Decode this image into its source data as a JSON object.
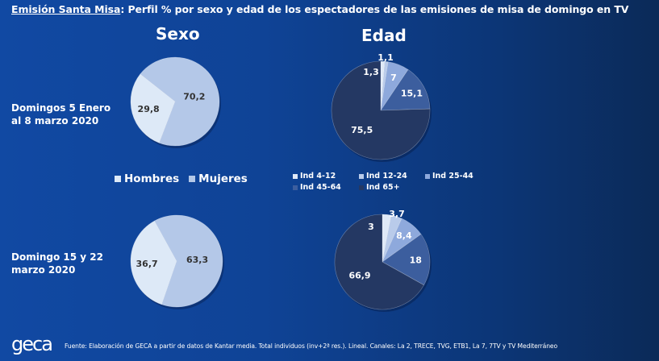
{
  "title": {
    "highlight": "Emisión Santa Misa",
    "rest": ": Perfil % por sexo y edad de los espectadores de las emisiones de misa de domingo en TV"
  },
  "columns": {
    "sex": "Sexo",
    "age": "Edad"
  },
  "periods": [
    {
      "line1": "Domingos 5 Enero",
      "line2": "al 8 marzo 2020"
    },
    {
      "line1": "Domingo 15 y 22",
      "line2": "marzo 2020"
    }
  ],
  "legend_sex": [
    {
      "label": "Hombres",
      "color": "#dde9f7"
    },
    {
      "label": "Mujeres",
      "color": "#b4c8e8"
    }
  ],
  "legend_age": [
    {
      "label": "Ind 4-12",
      "color": "#dfe9f7"
    },
    {
      "label": "Ind 12-24",
      "color": "#b9cbea"
    },
    {
      "label": "Ind 25-44",
      "color": "#8ea9dc"
    },
    {
      "label": "Ind 45-64",
      "color": "#3c5e9e"
    },
    {
      "label": "Ind 65+",
      "color": "#243863"
    }
  ],
  "chart_data": [
    {
      "type": "pie",
      "title": "Sexo - Domingos 5 Enero al 8 marzo 2020",
      "categories": [
        "Hombres",
        "Mujeres"
      ],
      "values": [
        29.8,
        70.2
      ],
      "labels": [
        "29,8",
        "70,2"
      ]
    },
    {
      "type": "pie",
      "title": "Edad - Domingos 5 Enero al 8 marzo 2020",
      "categories": [
        "Ind 4-12",
        "Ind 12-24",
        "Ind 25-44",
        "Ind 45-64",
        "Ind 65+"
      ],
      "values": [
        1.3,
        1.1,
        7,
        15.1,
        75.5
      ],
      "labels": [
        "1,3",
        "1,1",
        "7",
        "15,1",
        "75,5"
      ]
    },
    {
      "type": "pie",
      "title": "Sexo - Domingo 15 y 22 marzo 2020",
      "categories": [
        "Hombres",
        "Mujeres"
      ],
      "values": [
        36.7,
        63.3
      ],
      "labels": [
        "36,7",
        "63,3"
      ]
    },
    {
      "type": "pie",
      "title": "Edad - Domingo 15 y 22 marzo 2020",
      "categories": [
        "Ind 4-12",
        "Ind 12-24",
        "Ind 25-44",
        "Ind 45-64",
        "Ind 65+"
      ],
      "values": [
        3,
        3.7,
        8.4,
        18,
        66.9
      ],
      "labels": [
        "3",
        "3,7",
        "8,4",
        "18",
        "66,9"
      ]
    }
  ],
  "footer": {
    "logo": "geca",
    "source": "Fuente: Elaboración de GECA a partir de datos de Kantar media. Total individuos (inv+2ª res.). Lineal. Canales: La 2, TRECE, TVG, ETB1, La 7, 7TV y TV Mediterráneo"
  }
}
